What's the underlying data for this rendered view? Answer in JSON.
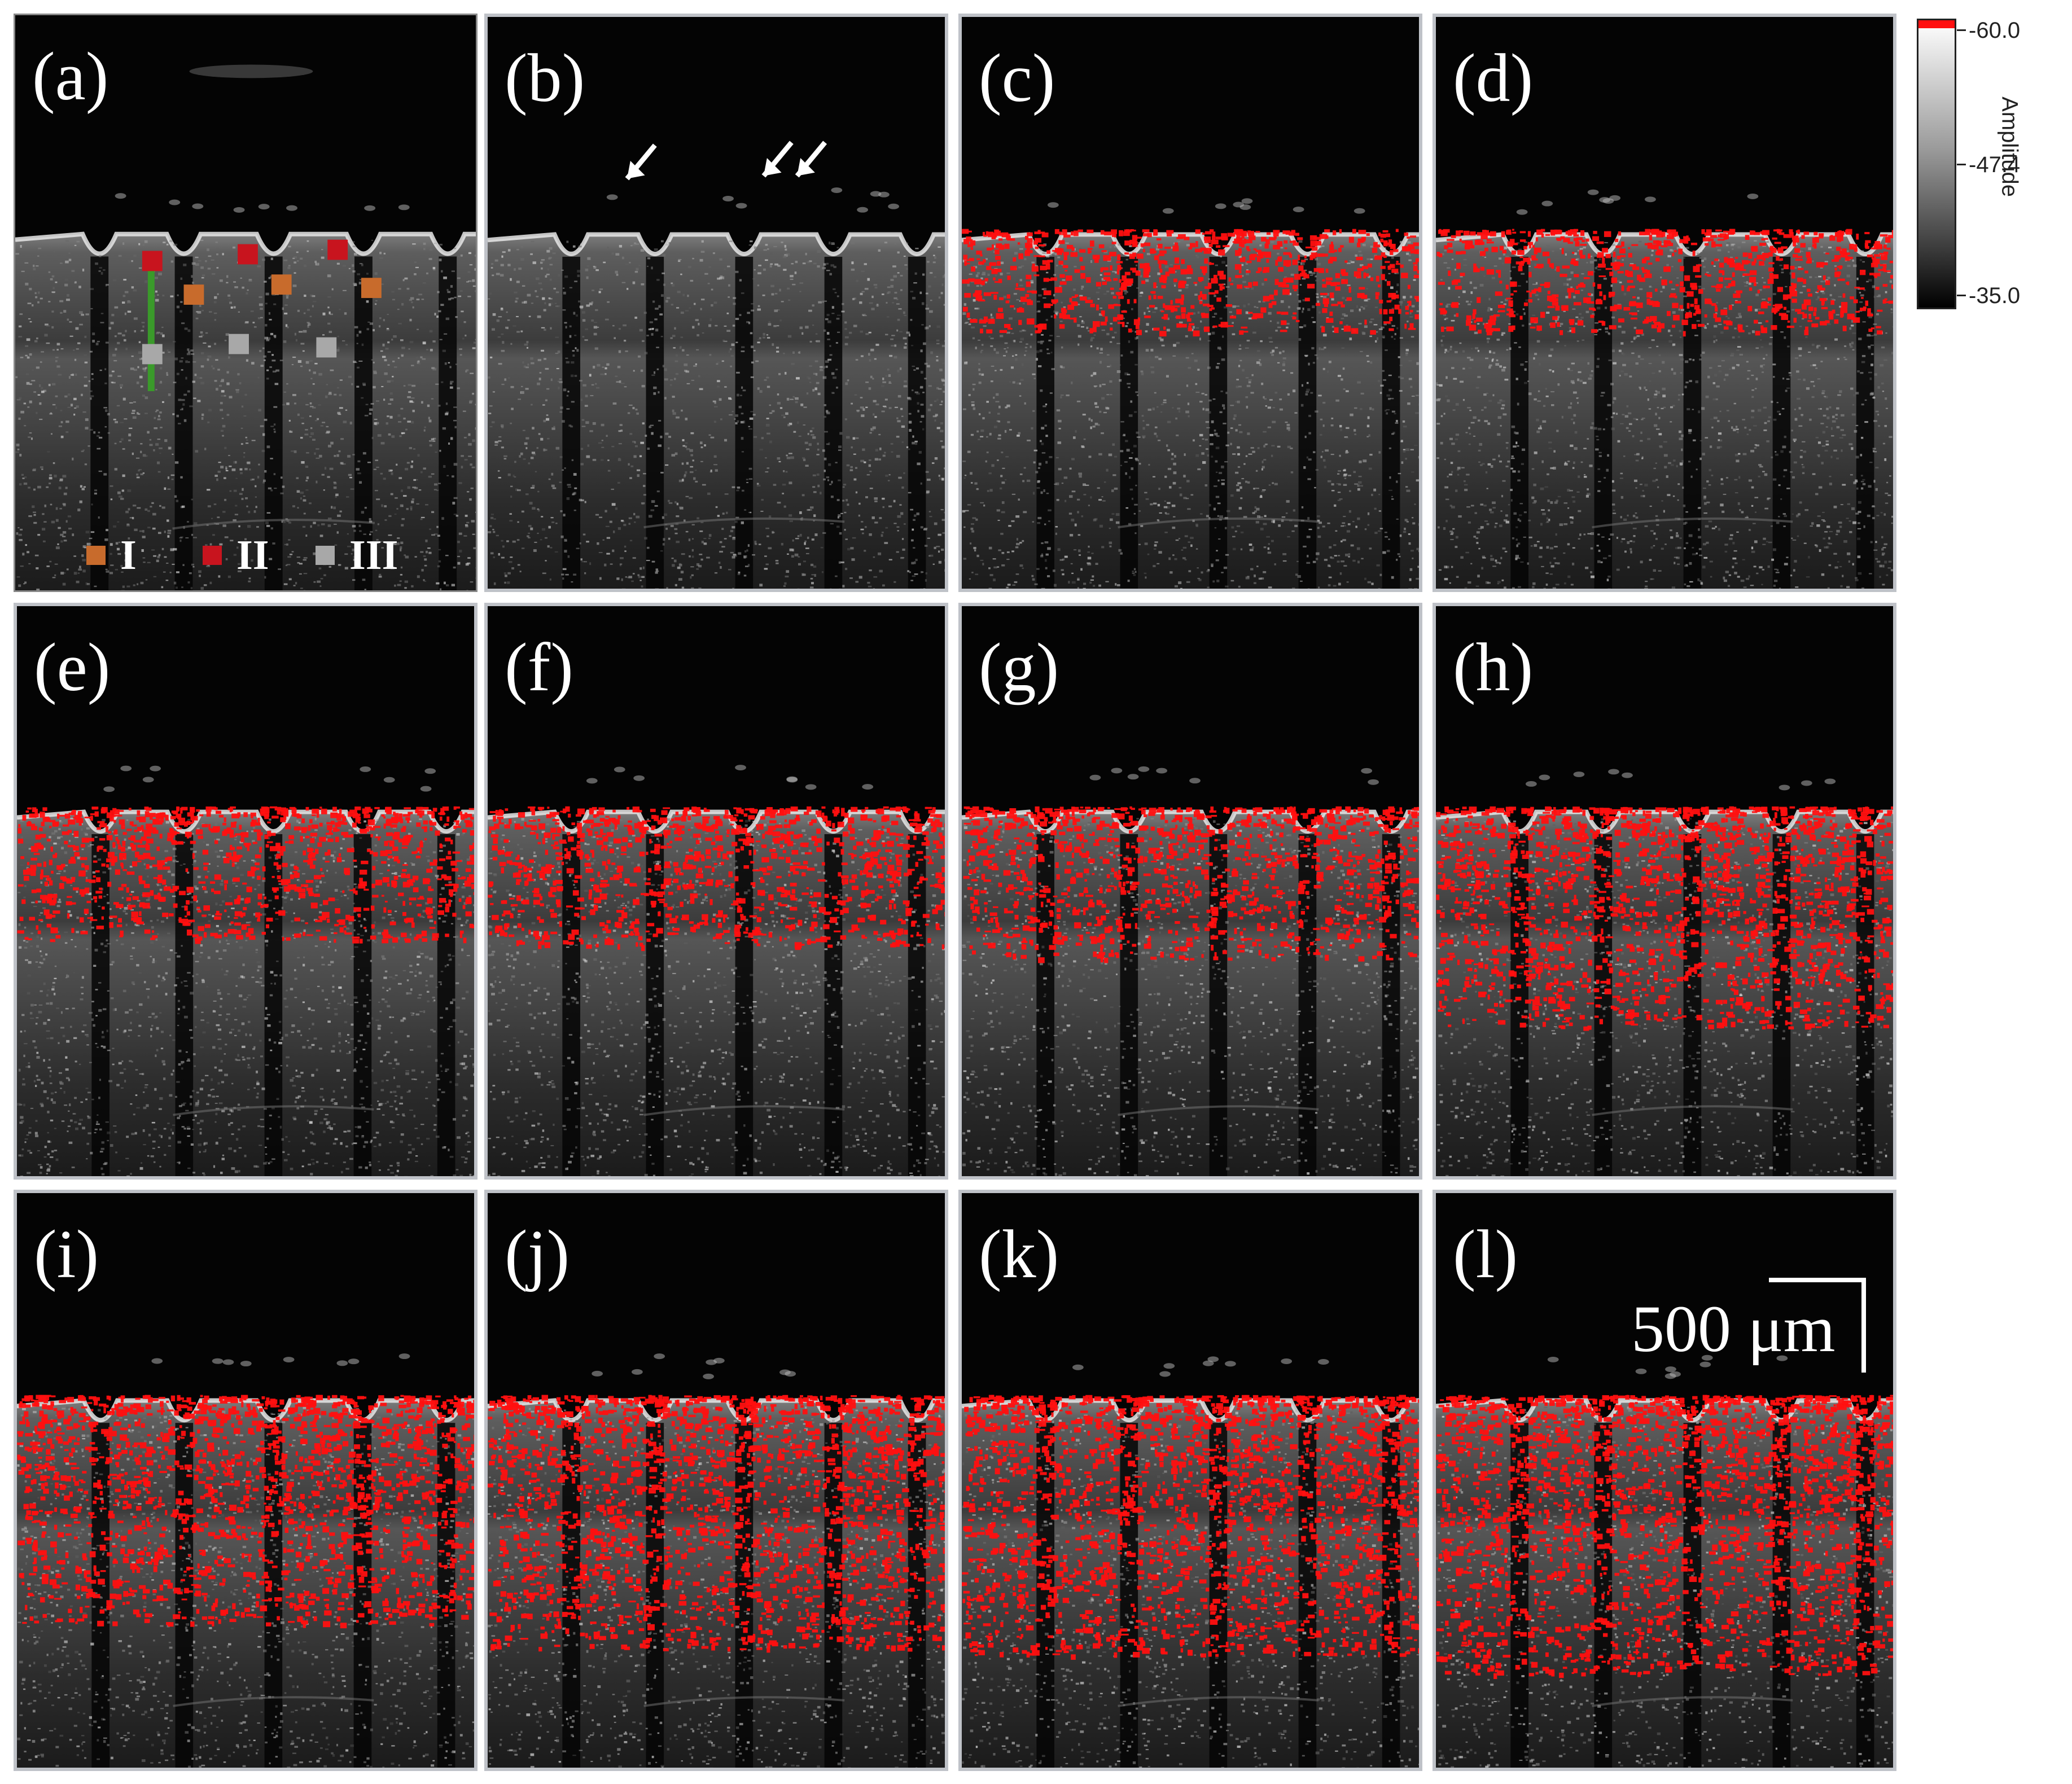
{
  "panels": [
    {
      "label": "(a)"
    },
    {
      "label": "(b)"
    },
    {
      "label": "(c)"
    },
    {
      "label": "(d)"
    },
    {
      "label": "(e)"
    },
    {
      "label": "(f)"
    },
    {
      "label": "(g)"
    },
    {
      "label": "(h)"
    },
    {
      "label": "(i)"
    },
    {
      "label": "(j)"
    },
    {
      "label": "(k)"
    },
    {
      "label": "(l)"
    }
  ],
  "legend": {
    "items": [
      {
        "label": "I",
        "color": "#c86b2c"
      },
      {
        "label": "II",
        "color": "#c8141e"
      },
      {
        "label": "III",
        "color": "#a8a8a8"
      }
    ]
  },
  "colorbar": {
    "title": "Amplitude",
    "ticks": [
      "-60.0",
      "-47.4",
      "-35.0"
    ],
    "top_color": "#ff1010"
  },
  "scale_bar": {
    "label": "500 μm"
  },
  "overlay_color": "#ff1010",
  "overlay_levels": [
    0,
    0,
    0.22,
    0.22,
    0.32,
    0.34,
    0.38,
    0.6,
    0.62,
    0.7,
    0.72,
    0.78
  ]
}
